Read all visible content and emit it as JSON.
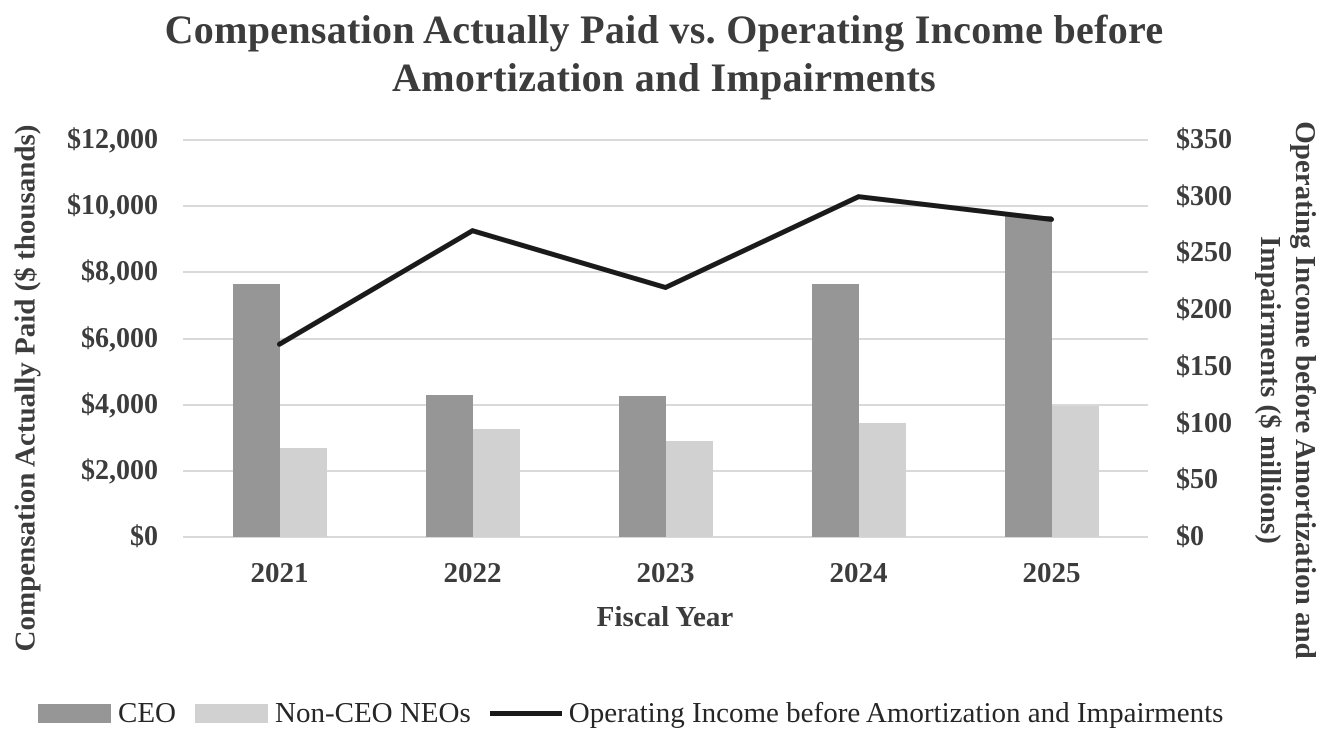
{
  "chart_data": {
    "type": "bar",
    "subtype": "combo-bar-line-dual-axis",
    "title": "Compensation Actually Paid vs. Operating Income before Amortization and Impairments",
    "title_lines": [
      "Compensation Actually Paid vs. Operating Income before",
      "Amortization and Impairments"
    ],
    "categories": [
      "2021",
      "2022",
      "2023",
      "2024",
      "2025"
    ],
    "xlabel": "Fiscal Year",
    "series": [
      {
        "name": "CEO",
        "type": "bar",
        "axis": "left",
        "color": "#969696",
        "values": [
          7650,
          4300,
          4250,
          7650,
          9700
        ]
      },
      {
        "name": "Non-CEO NEOs",
        "type": "bar",
        "axis": "left",
        "color": "#d1d1d1",
        "values": [
          2700,
          3250,
          2900,
          3450,
          3950
        ]
      },
      {
        "name": "Operating Income before Amortization and Impairments",
        "type": "line",
        "axis": "right",
        "color": "#1a1a1a",
        "values": [
          170,
          270,
          220,
          300,
          280
        ]
      }
    ],
    "left_axis": {
      "label": "Compensation Actually Paid ($ thousands)",
      "min": 0,
      "max": 12000,
      "step": 2000,
      "tick_labels": [
        "$0",
        "$2,000",
        "$4,000",
        "$6,000",
        "$8,000",
        "$10,000",
        "$12,000"
      ]
    },
    "right_axis": {
      "label": "Operating Income before Amortization and Impairments ($ millions)",
      "label_lines": [
        "Operating Income before Amortization and",
        "Impairments ($ millions)"
      ],
      "min": 0,
      "max": 350,
      "step": 50,
      "tick_labels": [
        "$0",
        "$50",
        "$100",
        "$150",
        "$200",
        "$250",
        "$300",
        "$350"
      ]
    },
    "grid": "horizontal",
    "gridline_color": "#d9d9d9",
    "legend_position": "bottom"
  }
}
